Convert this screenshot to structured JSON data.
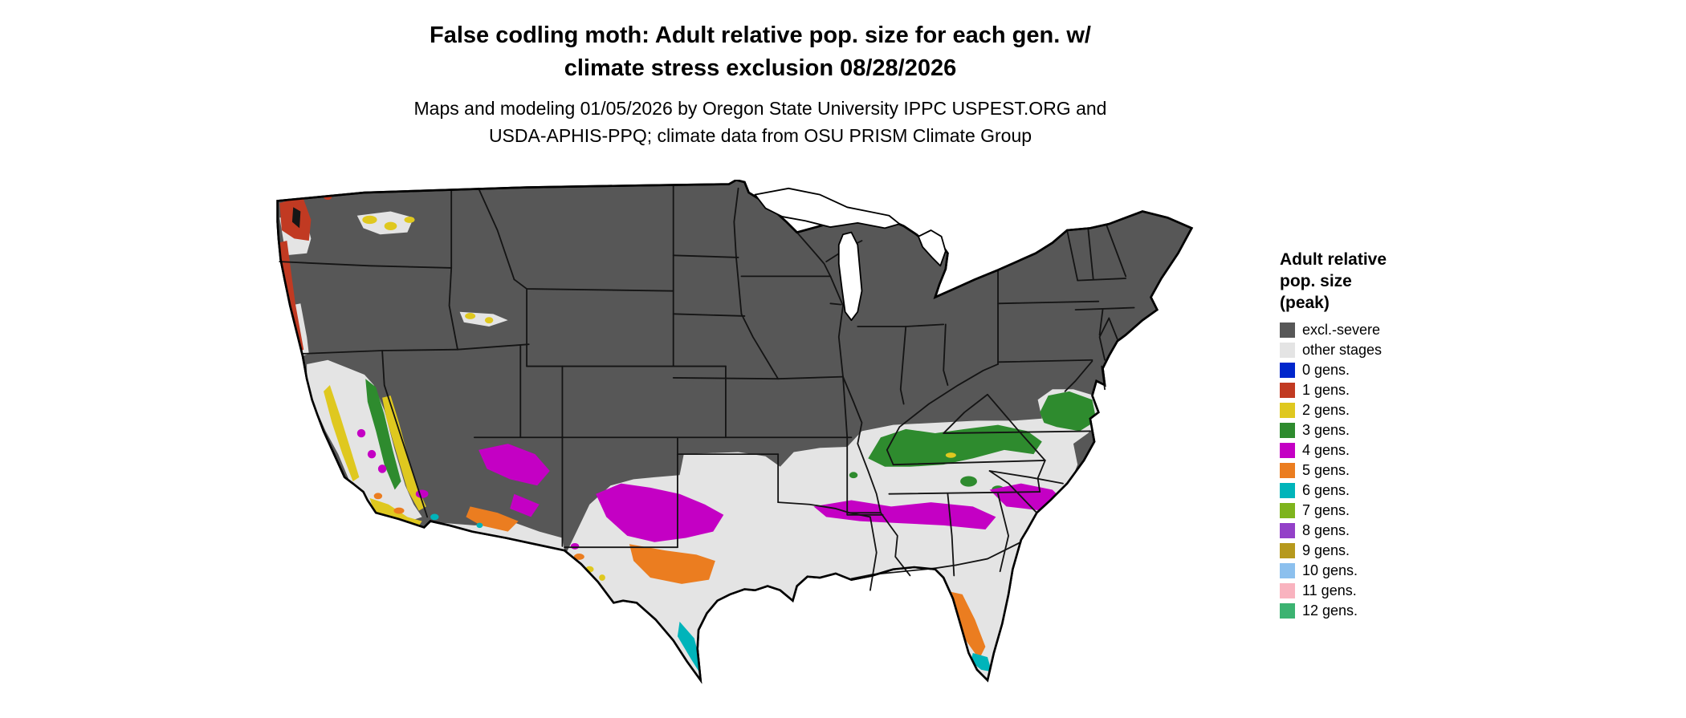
{
  "title": {
    "line1": "False codling moth: Adult relative pop. size for each gen. w/",
    "line2": "climate stress exclusion 08/28/2026"
  },
  "subtitle": {
    "line1": "Maps and modeling 01/05/2026 by Oregon State University IPPC USPEST.ORG and",
    "line2": "USDA-APHIS-PPQ; climate data from OSU PRISM Climate Group"
  },
  "legend": {
    "title_lines": [
      "Adult relative",
      "pop. size",
      "(peak)"
    ],
    "items": [
      {
        "label": "excl.-severe",
        "key": "excl"
      },
      {
        "label": "other stages",
        "key": "other"
      },
      {
        "label": "0 gens.",
        "key": "g0"
      },
      {
        "label": "1 gens.",
        "key": "g1"
      },
      {
        "label": "2 gens.",
        "key": "g2"
      },
      {
        "label": "3 gens.",
        "key": "g3"
      },
      {
        "label": "4 gens.",
        "key": "g4"
      },
      {
        "label": "5 gens.",
        "key": "g5"
      },
      {
        "label": "6 gens.",
        "key": "g6"
      },
      {
        "label": "7 gens.",
        "key": "g7"
      },
      {
        "label": "8 gens.",
        "key": "g8"
      },
      {
        "label": "9 gens.",
        "key": "g9"
      },
      {
        "label": "10 gens.",
        "key": "g10"
      },
      {
        "label": "11 gens.",
        "key": "g11"
      },
      {
        "label": "12 gens.",
        "key": "g12"
      }
    ]
  },
  "map": {
    "region": "Contiguous United States",
    "colors": {
      "excl": "#575757",
      "other": "#e4e4e4",
      "g0": "#0026cc",
      "g1": "#c13a22",
      "g2": "#dfc81f",
      "g3": "#2e8b2e",
      "g4": "#c400c4",
      "g5": "#eb7d20",
      "g6": "#00b4ba",
      "g7": "#7eb41d",
      "g8": "#9341c8",
      "g9": "#b6991d",
      "g10": "#8cc0ee",
      "g11": "#f9b3bf",
      "g12": "#3cb371",
      "water": "#161616",
      "border": "#141414"
    }
  }
}
